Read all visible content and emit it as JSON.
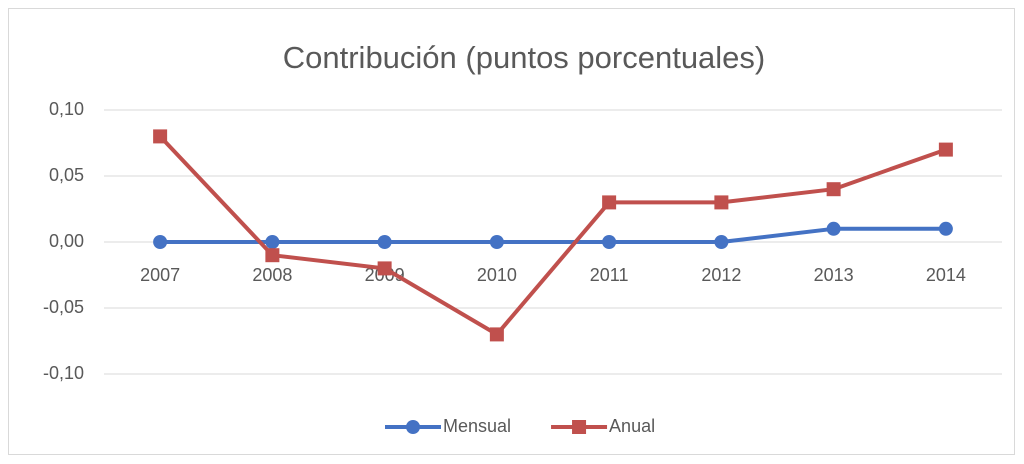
{
  "chart_data": {
    "type": "line",
    "title": "Contribución (puntos porcentuales)",
    "categories": [
      "2007",
      "2008",
      "2009",
      "2010",
      "2011",
      "2012",
      "2013",
      "2014"
    ],
    "series": [
      {
        "name": "Mensual",
        "color": "#4472c4",
        "marker": "circle",
        "values": [
          0,
          0,
          0,
          0,
          0,
          0,
          0.01,
          0.01
        ]
      },
      {
        "name": "Anual",
        "color": "#c0504d",
        "marker": "square",
        "values": [
          0.08,
          -0.01,
          -0.02,
          -0.07,
          0.03,
          0.03,
          0.04,
          0.07
        ]
      }
    ],
    "ylim": [
      -0.1,
      0.1
    ],
    "yticks": [
      {
        "value": -0.1,
        "label": "-0,10"
      },
      {
        "value": -0.05,
        "label": "-0,05"
      },
      {
        "value": 0,
        "label": "0,00"
      },
      {
        "value": 0.05,
        "label": "0,05"
      },
      {
        "value": 0.1,
        "label": "0,10"
      }
    ],
    "grid": true,
    "legend": "bottom"
  }
}
